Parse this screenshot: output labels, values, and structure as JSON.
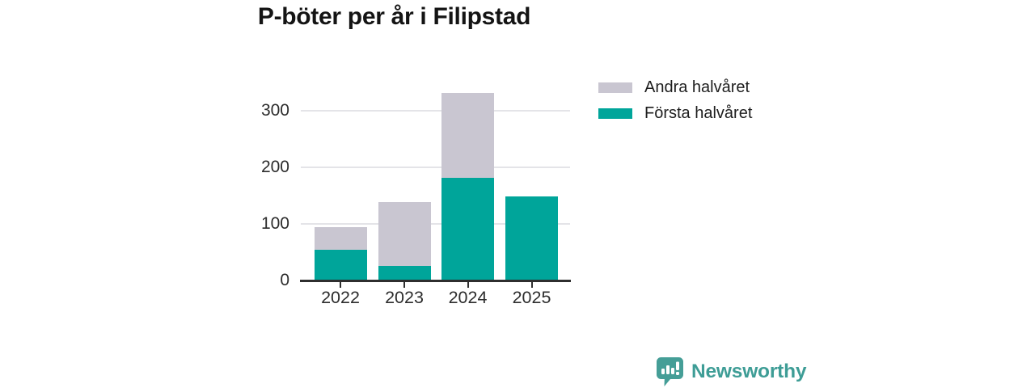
{
  "chart_data": {
    "type": "bar",
    "stacked": true,
    "title": "P-böter per år i Filipstad",
    "categories": [
      "2022",
      "2023",
      "2024",
      "2025"
    ],
    "series": [
      {
        "name": "Första halvåret",
        "color": "#00a59a",
        "values": [
          54,
          26,
          181,
          148
        ]
      },
      {
        "name": "Andra halvåret",
        "color": "#c9c6d1",
        "values": [
          40,
          112,
          151,
          0
        ]
      }
    ],
    "xlabel": "",
    "ylabel": "",
    "ylim": [
      0,
      340
    ],
    "yticks": [
      0,
      100,
      200,
      300
    ],
    "grid": true,
    "legend_position": "top-right"
  },
  "legend": {
    "items": [
      {
        "label": "Andra halvåret",
        "color": "#c9c6d1"
      },
      {
        "label": "Första halvåret",
        "color": "#00a59a"
      }
    ]
  },
  "branding": {
    "logo_text": "Newsworthy",
    "color": "#3e9d96",
    "icon": "bar-chart-speech-bubble-icon"
  },
  "colors": {
    "first_half": "#00a59a",
    "second_half": "#c9c6d1",
    "gridline": "#e4e4e8",
    "axis": "#2e2e2e",
    "title_text": "#141414"
  }
}
